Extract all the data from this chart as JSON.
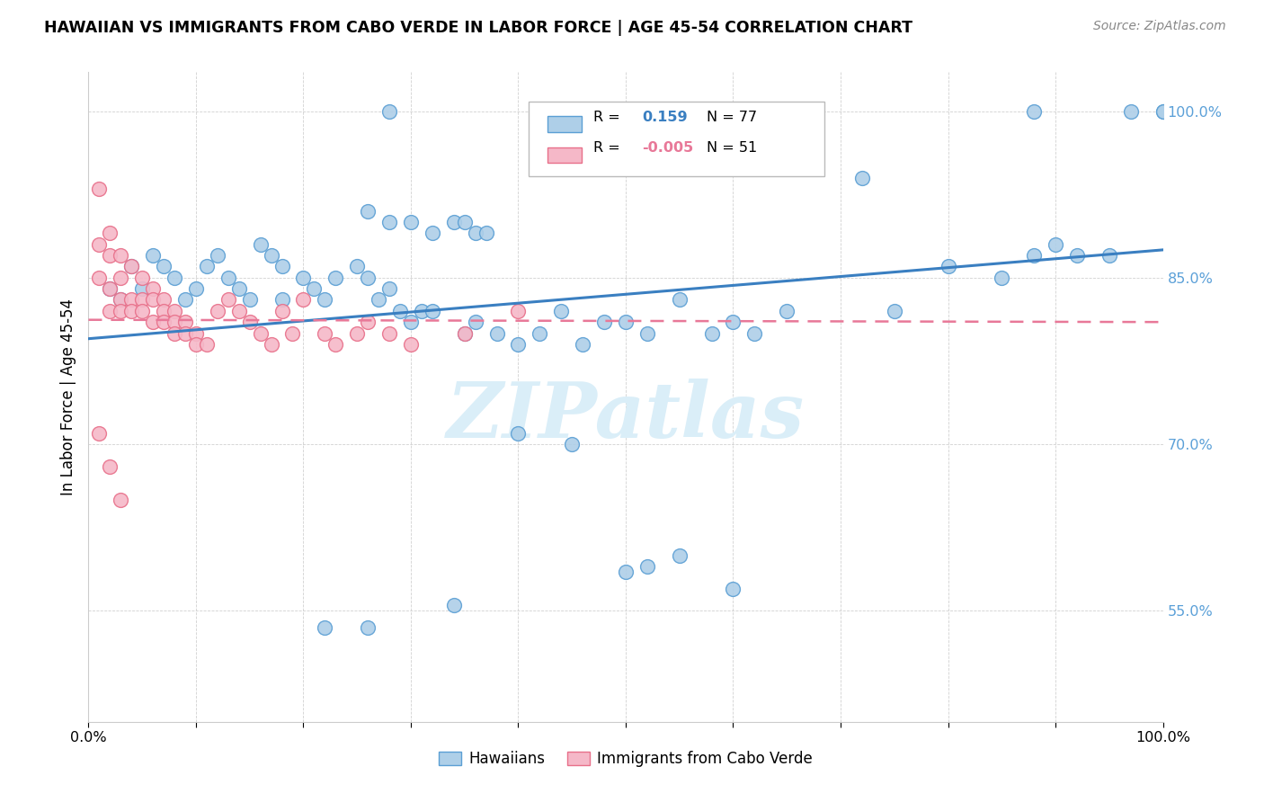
{
  "title": "HAWAIIAN VS IMMIGRANTS FROM CABO VERDE IN LABOR FORCE | AGE 45-54 CORRELATION CHART",
  "source": "Source: ZipAtlas.com",
  "ylabel": "In Labor Force | Age 45-54",
  "xlim": [
    0,
    1.0
  ],
  "ylim": [
    0.45,
    1.035
  ],
  "hawaiians_R": 0.159,
  "hawaiians_N": 77,
  "cabo_verde_R": -0.005,
  "cabo_verde_N": 51,
  "hawaiian_face_color": "#aecfe8",
  "hawaiian_edge_color": "#5b9fd4",
  "cabo_verde_face_color": "#f5b8c8",
  "cabo_verde_edge_color": "#e8708a",
  "hawaiian_line_color": "#3a7fc1",
  "cabo_verde_line_color": "#e87898",
  "watermark_color": "#daeef8",
  "grid_color": "#cccccc",
  "y_tick_color": "#5ba0d8",
  "hawaiian_trend_x0": 0.0,
  "hawaiian_trend_y0": 0.795,
  "hawaiian_trend_x1": 1.0,
  "hawaiian_trend_y1": 0.875,
  "cabo_trend_x0": 0.0,
  "cabo_trend_y0": 0.812,
  "cabo_trend_x1": 1.0,
  "cabo_trend_y1": 0.81
}
